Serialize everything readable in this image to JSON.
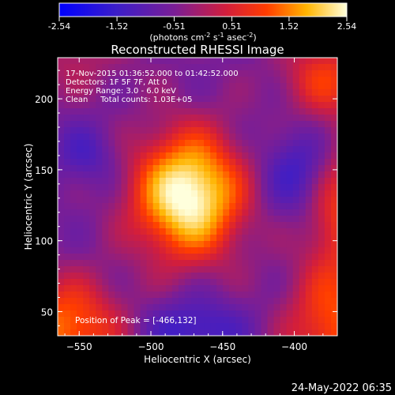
{
  "chart_data": {
    "type": "heatmap",
    "title": "Reconstructed RHESSI Image",
    "xlabel": "Heliocentric X (arcsec)",
    "ylabel": "Heliocentric Y (arcsec)",
    "xlim": [
      -565,
      -370
    ],
    "ylim": [
      33,
      229
    ],
    "x_ticks": [
      -550,
      -500,
      -450,
      -400
    ],
    "y_ticks": [
      50,
      100,
      150,
      200
    ],
    "colorbar": {
      "range": [
        -2.54,
        2.54
      ],
      "ticks": [
        "-2.54",
        "-1.52",
        "-0.51",
        "0.51",
        "1.52",
        "2.54"
      ],
      "unit_prefix": "(photons cm",
      "unit_sup1": "-2",
      "unit_mid1": " s",
      "unit_sup2": "-1",
      "unit_mid2": " asec",
      "unit_sup3": "-2",
      "unit_suffix": ")"
    },
    "info_lines": [
      "17-Nov-2015 01:36:52.000 to 01:42:52.000",
      "Detectors: 1F 5F 7F, Att 0",
      "Energy Range: 3.0 - 6.0 keV",
      "Clean     Total counts: 1.03E+05"
    ],
    "peak_label": "Position of Peak = [-466,132]",
    "peak": {
      "x": -466,
      "y": 132,
      "value": 2.54
    },
    "secondary_sources": [
      {
        "x": -555,
        "y": 40,
        "value": 1.4
      },
      {
        "x": -378,
        "y": 40,
        "value": 1.2
      },
      {
        "x": -372,
        "y": 130,
        "value": 0.9
      },
      {
        "x": -375,
        "y": 210,
        "value": 0.8
      }
    ],
    "minima": [
      {
        "x": -395,
        "y": 148,
        "value": -1.6
      },
      {
        "x": -470,
        "y": 38,
        "value": -1.6
      }
    ],
    "timestamp": "24-May-2022 06:35"
  }
}
